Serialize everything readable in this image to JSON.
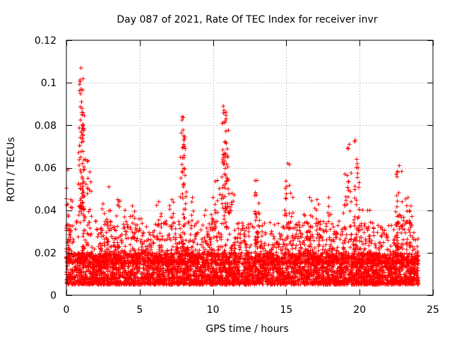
{
  "chart_data": {
    "type": "scatter",
    "title": "Day 087 of 2021, Rate Of TEC Index for receiver invr",
    "xlabel": "GPS time / hours",
    "ylabel": "ROTI / TECUs",
    "xlim": [
      0,
      25
    ],
    "ylim": [
      0,
      0.12
    ],
    "xticks": [
      0,
      5,
      10,
      15,
      20,
      25
    ],
    "xtick_labels": [
      "0",
      "5",
      "10",
      "15",
      "20",
      "25"
    ],
    "yticks": [
      0,
      0.02,
      0.04,
      0.06,
      0.08,
      0.1,
      0.12
    ],
    "ytick_labels": [
      "0",
      "0.02",
      "0.04",
      "0.06",
      "0.08",
      "0.1",
      "0.12"
    ],
    "grid": true,
    "marker": "plus",
    "marker_color": "#ff0000",
    "data_extent_hours": [
      0,
      24
    ],
    "peaks": [
      {
        "x": 0.1,
        "y": 0.059
      },
      {
        "x": 0.3,
        "y": 0.045
      },
      {
        "x": 1.0,
        "y": 0.107
      },
      {
        "x": 1.0,
        "y": 0.097
      },
      {
        "x": 1.05,
        "y": 0.086
      },
      {
        "x": 1.1,
        "y": 0.08
      },
      {
        "x": 1.3,
        "y": 0.064
      },
      {
        "x": 1.6,
        "y": 0.058
      },
      {
        "x": 2.5,
        "y": 0.043
      },
      {
        "x": 2.9,
        "y": 0.051
      },
      {
        "x": 3.5,
        "y": 0.045
      },
      {
        "x": 4.0,
        "y": 0.04
      },
      {
        "x": 4.5,
        "y": 0.042
      },
      {
        "x": 5.1,
        "y": 0.036
      },
      {
        "x": 6.3,
        "y": 0.044
      },
      {
        "x": 7.2,
        "y": 0.045
      },
      {
        "x": 7.9,
        "y": 0.084
      },
      {
        "x": 8.0,
        "y": 0.075
      },
      {
        "x": 8.05,
        "y": 0.07
      },
      {
        "x": 8.6,
        "y": 0.046
      },
      {
        "x": 9.5,
        "y": 0.04
      },
      {
        "x": 10.0,
        "y": 0.046
      },
      {
        "x": 10.3,
        "y": 0.054
      },
      {
        "x": 10.7,
        "y": 0.089
      },
      {
        "x": 10.75,
        "y": 0.087
      },
      {
        "x": 10.9,
        "y": 0.083
      },
      {
        "x": 11.0,
        "y": 0.065
      },
      {
        "x": 11.3,
        "y": 0.048
      },
      {
        "x": 12.0,
        "y": 0.034
      },
      {
        "x": 13.0,
        "y": 0.054
      },
      {
        "x": 13.1,
        "y": 0.039
      },
      {
        "x": 14.0,
        "y": 0.03
      },
      {
        "x": 14.9,
        "y": 0.04
      },
      {
        "x": 15.1,
        "y": 0.062
      },
      {
        "x": 15.3,
        "y": 0.048
      },
      {
        "x": 16.2,
        "y": 0.038
      },
      {
        "x": 16.6,
        "y": 0.046
      },
      {
        "x": 17.1,
        "y": 0.045
      },
      {
        "x": 17.9,
        "y": 0.046
      },
      {
        "x": 18.3,
        "y": 0.03
      },
      {
        "x": 19.0,
        "y": 0.057
      },
      {
        "x": 19.3,
        "y": 0.071
      },
      {
        "x": 19.7,
        "y": 0.073
      },
      {
        "x": 19.8,
        "y": 0.064
      },
      {
        "x": 20.2,
        "y": 0.04
      },
      {
        "x": 20.7,
        "y": 0.04
      },
      {
        "x": 21.5,
        "y": 0.032
      },
      {
        "x": 22.5,
        "y": 0.057
      },
      {
        "x": 22.7,
        "y": 0.061
      },
      {
        "x": 22.9,
        "y": 0.044
      },
      {
        "x": 23.3,
        "y": 0.046
      },
      {
        "x": 23.5,
        "y": 0.042
      }
    ],
    "baseline_band": [
      0.005,
      0.02
    ],
    "typical_upper": [
      0.015,
      0.035
    ]
  }
}
